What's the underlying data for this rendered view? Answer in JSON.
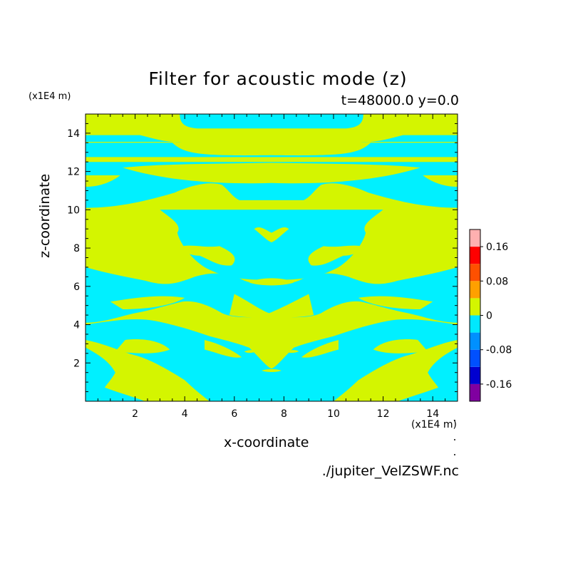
{
  "title": "Filter for acoustic mode (z)",
  "subtitle": "t=48000.0 y=0.0",
  "source_label": "./jupiter_VelZSWF.nc",
  "chart_data": {
    "type": "heatmap",
    "xlabel": "x-coordinate",
    "ylabel": "z-coordinate",
    "x_unit": "(x1E4 m)",
    "y_unit": "(x1E4 m)",
    "xlim": [
      0,
      15
    ],
    "ylim": [
      0,
      15
    ],
    "x_ticks": [
      2,
      4,
      6,
      8,
      10,
      12,
      14
    ],
    "y_ticks": [
      2,
      4,
      6,
      8,
      10,
      12,
      14
    ],
    "grid": false,
    "background_value_color": "#d4f500",
    "negative_value_color": "#00f0ff",
    "regions_negative": [
      {
        "y_range": [
          14.25,
          15.0
        ],
        "x_range": [
          3.8,
          11.2
        ],
        "note_value": "-0.04"
      },
      {
        "y_range": [
          12.7,
          13.6
        ],
        "x_range": [
          0,
          15
        ],
        "note_value": "-0.04"
      },
      {
        "y_range": [
          9.0,
          12.5
        ],
        "x_range": [
          0,
          15
        ],
        "note_value": "-0.04"
      },
      {
        "y_range": [
          4.0,
          7.5
        ],
        "x_range": [
          0,
          15
        ],
        "note_value": "-0.04"
      },
      {
        "y_range": [
          0,
          4.0
        ],
        "x_range": [
          0,
          15
        ],
        "note_value": "-0.04"
      }
    ],
    "colorbar": {
      "labels": [
        "0.16",
        "0.08",
        "0",
        "-0.08",
        "-0.16"
      ],
      "levels": [
        -0.2,
        -0.16,
        -0.12,
        -0.08,
        -0.04,
        0,
        0.04,
        0.08,
        0.12,
        0.16,
        0.2
      ],
      "colors": [
        "#8000a0",
        "#0000d0",
        "#0050ff",
        "#0090ff",
        "#00e8ff",
        "#d4f500",
        "#ffa000",
        "#ff5000",
        "#ff0000",
        "#ffb0b0"
      ]
    }
  }
}
